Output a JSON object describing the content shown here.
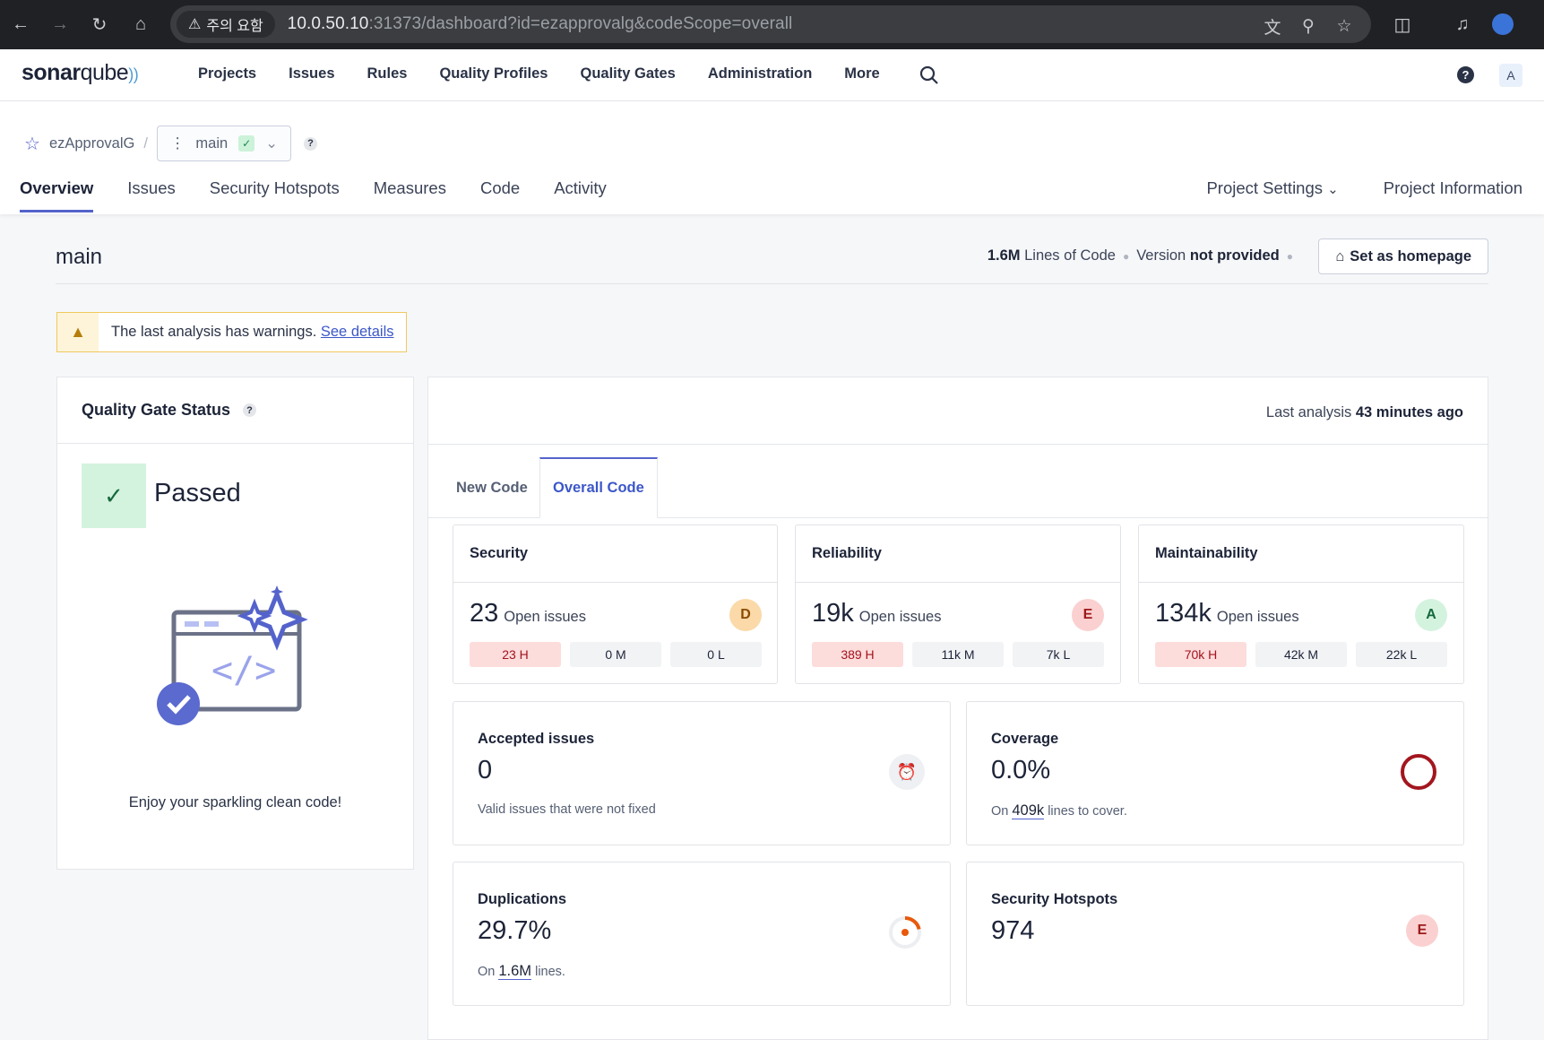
{
  "browser": {
    "warning": "주의 요함",
    "url_host": "10.0.50.10",
    "url_rest": ":31373/dashboard?id=ezapprovalg&codeScope=overall"
  },
  "app": {
    "logo_a": "sonar",
    "logo_b": "qube",
    "nav": [
      "Projects",
      "Issues",
      "Rules",
      "Quality Profiles",
      "Quality Gates",
      "Administration",
      "More"
    ],
    "avatar": "A",
    "help": "?"
  },
  "project": {
    "name": "ezApprovalG",
    "separator": "/",
    "branch": "main",
    "help": "?"
  },
  "tabs": [
    "Overview",
    "Issues",
    "Security Hotspots",
    "Measures",
    "Code",
    "Activity"
  ],
  "right_tabs": {
    "settings": "Project Settings",
    "info": "Project Information"
  },
  "header": {
    "title": "main",
    "loc_value": "1.6M",
    "loc_label": "Lines of Code",
    "version_label": "Version",
    "version_value": "not provided",
    "homepage_button": "Set as homepage"
  },
  "warning": {
    "text": "The last analysis has warnings.",
    "link": "See details"
  },
  "quality_gate": {
    "title": "Quality Gate Status",
    "help": "?",
    "status": "Passed",
    "message": "Enjoy your sparkling clean code!"
  },
  "analysis": {
    "label": "Last analysis",
    "value": "43 minutes ago"
  },
  "code_tabs": {
    "new": "New Code",
    "overall": "Overall Code"
  },
  "ratings": [
    {
      "title": "Security",
      "count": "23",
      "label": "Open issues",
      "grade": "D",
      "grade_bg": "#fbd9a8",
      "grade_fg": "#8a4b04",
      "h": "23 H",
      "m": "0 M",
      "l": "0 L"
    },
    {
      "title": "Reliability",
      "count": "19k",
      "label": "Open issues",
      "grade": "E",
      "grade_bg": "#fbd0d0",
      "grade_fg": "#9c1a1a",
      "h": "389 H",
      "m": "11k M",
      "l": "7k L"
    },
    {
      "title": "Maintainability",
      "count": "134k",
      "label": "Open issues",
      "grade": "A",
      "grade_bg": "#d4f3df",
      "grade_fg": "#16693d",
      "h": "70k H",
      "m": "42k M",
      "l": "22k L"
    }
  ],
  "accepted": {
    "title": "Accepted issues",
    "value": "0",
    "note": "Valid issues that were not fixed"
  },
  "coverage": {
    "title": "Coverage",
    "value": "0.0%",
    "note_pre": "On",
    "note_val": "409k",
    "note_post": "lines to cover.",
    "percent": 0
  },
  "duplications": {
    "title": "Duplications",
    "value": "29.7%",
    "note_pre": "On",
    "note_val": "1.6M",
    "note_post": "lines.",
    "percent": 29.7
  },
  "hotspots": {
    "title": "Security Hotspots",
    "value": "974",
    "grade": "E"
  }
}
